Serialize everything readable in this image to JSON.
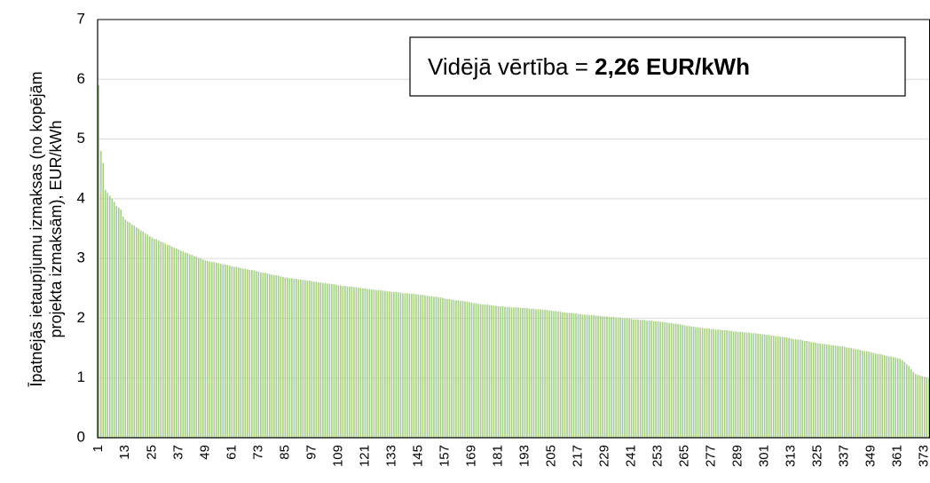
{
  "chart_data": {
    "type": "bar",
    "y_label": [
      "Īpatnējās ietaupījumu izmaksas (no kopējām",
      "projekta izmaksām), EUR/kWh"
    ],
    "annotation": {
      "text": "Vidējā vērtība =",
      "value_text": "2,26 EUR/kWh"
    },
    "color": "#a6cf86",
    "grid": true,
    "ylim": [
      0,
      7
    ],
    "yticks": [
      0,
      1,
      2,
      3,
      4,
      5,
      6,
      7
    ],
    "categories": [
      1,
      null,
      null,
      null,
      null,
      null,
      null,
      null,
      null,
      null,
      null,
      null,
      13,
      null,
      null,
      null,
      null,
      null,
      null,
      null,
      null,
      null,
      null,
      null,
      25,
      null,
      null,
      null,
      null,
      null,
      null,
      null,
      null,
      null,
      null,
      null,
      37,
      null,
      null,
      null,
      null,
      null,
      null,
      null,
      null,
      null,
      null,
      null,
      49,
      null,
      null,
      null,
      null,
      null,
      null,
      null,
      null,
      null,
      null,
      null,
      61,
      null,
      null,
      null,
      null,
      null,
      null,
      null,
      null,
      null,
      null,
      null,
      73,
      null,
      null,
      null,
      null,
      null,
      null,
      null,
      null,
      null,
      null,
      null,
      85,
      null,
      null,
      null,
      null,
      null,
      null,
      null,
      null,
      null,
      null,
      null,
      97,
      null,
      null,
      null,
      null,
      null,
      null,
      null,
      null,
      null,
      null,
      null,
      109,
      null,
      null,
      null,
      null,
      null,
      null,
      null,
      null,
      null,
      null,
      null,
      121,
      null,
      null,
      null,
      null,
      null,
      null,
      null,
      null,
      null,
      null,
      null,
      133,
      null,
      null,
      null,
      null,
      null,
      null,
      null,
      null,
      null,
      null,
      null,
      145,
      null,
      null,
      null,
      null,
      null,
      null,
      null,
      null,
      null,
      null,
      null,
      157,
      null,
      null,
      null,
      null,
      null,
      null,
      null,
      null,
      null,
      null,
      null,
      169,
      null,
      null,
      null,
      null,
      null,
      null,
      null,
      null,
      null,
      null,
      null,
      181,
      null,
      null,
      null,
      null,
      null,
      null,
      null,
      null,
      null,
      null,
      null,
      193,
      null,
      null,
      null,
      null,
      null,
      null,
      null,
      null,
      null,
      null,
      null,
      205,
      null,
      null,
      null,
      null,
      null,
      null,
      null,
      null,
      null,
      null,
      null,
      217,
      null,
      null,
      null,
      null,
      null,
      null,
      null,
      null,
      null,
      null,
      null,
      229,
      null,
      null,
      null,
      null,
      null,
      null,
      null,
      null,
      null,
      null,
      null,
      241,
      null,
      null,
      null,
      null,
      null,
      null,
      null,
      null,
      null,
      null,
      null,
      253,
      null,
      null,
      null,
      null,
      null,
      null,
      null,
      null,
      null,
      null,
      null,
      265,
      null,
      null,
      null,
      null,
      null,
      null,
      null,
      null,
      null,
      null,
      null,
      277,
      null,
      null,
      null,
      null,
      null,
      null,
      null,
      null,
      null,
      null,
      null,
      289,
      null,
      null,
      null,
      null,
      null,
      null,
      null,
      null,
      null,
      null,
      null,
      301,
      null,
      null,
      null,
      null,
      null,
      null,
      null,
      null,
      null,
      null,
      null,
      313,
      null,
      null,
      null,
      null,
      null,
      null,
      null,
      null,
      null,
      null,
      null,
      325,
      null,
      null,
      null,
      null,
      null,
      null,
      null,
      null,
      null,
      null,
      null,
      337,
      null,
      null,
      null,
      null,
      null,
      null,
      null,
      null,
      null,
      null,
      null,
      349,
      null,
      null,
      null,
      null,
      null,
      null,
      null,
      null,
      null,
      null,
      null,
      361,
      null,
      null,
      null,
      null,
      null,
      null,
      null,
      null,
      null,
      null,
      null,
      373,
      null,
      null
    ],
    "values": [
      5.9,
      4.8,
      4.6,
      4.15,
      4.1,
      4.05,
      4.0,
      3.95,
      3.88,
      3.85,
      3.82,
      3.7,
      3.65,
      3.62,
      3.6,
      3.57,
      3.55,
      3.52,
      3.5,
      3.47,
      3.45,
      3.42,
      3.4,
      3.37,
      3.35,
      3.33,
      3.32,
      3.3,
      3.28,
      3.27,
      3.25,
      3.23,
      3.22,
      3.2,
      3.18,
      3.17,
      3.15,
      3.13,
      3.12,
      3.1,
      3.09,
      3.07,
      3.06,
      3.04,
      3.03,
      3.01,
      3.0,
      2.98,
      2.97,
      2.96,
      2.95,
      2.94,
      2.94,
      2.93,
      2.92,
      2.91,
      2.9,
      2.9,
      2.89,
      2.88,
      2.87,
      2.86,
      2.86,
      2.85,
      2.84,
      2.83,
      2.83,
      2.82,
      2.81,
      2.81,
      2.8,
      2.79,
      2.78,
      2.77,
      2.76,
      2.76,
      2.75,
      2.74,
      2.73,
      2.72,
      2.72,
      2.71,
      2.7,
      2.69,
      2.68,
      2.68,
      2.67,
      2.67,
      2.66,
      2.66,
      2.65,
      2.65,
      2.64,
      2.64,
      2.63,
      2.63,
      2.62,
      2.61,
      2.61,
      2.6,
      2.6,
      2.59,
      2.59,
      2.58,
      2.58,
      2.57,
      2.57,
      2.56,
      2.55,
      2.55,
      2.54,
      2.54,
      2.53,
      2.53,
      2.53,
      2.52,
      2.52,
      2.51,
      2.51,
      2.5,
      2.5,
      2.49,
      2.49,
      2.48,
      2.48,
      2.47,
      2.47,
      2.47,
      2.46,
      2.46,
      2.45,
      2.45,
      2.44,
      2.44,
      2.44,
      2.43,
      2.43,
      2.42,
      2.42,
      2.42,
      2.41,
      2.41,
      2.41,
      2.4,
      2.4,
      2.39,
      2.39,
      2.38,
      2.38,
      2.37,
      2.37,
      2.36,
      2.36,
      2.35,
      2.35,
      2.34,
      2.33,
      2.32,
      2.32,
      2.31,
      2.31,
      2.3,
      2.3,
      2.29,
      2.29,
      2.28,
      2.28,
      2.27,
      2.26,
      2.25,
      2.25,
      2.24,
      2.24,
      2.23,
      2.23,
      2.23,
      2.22,
      2.22,
      2.21,
      2.21,
      2.2,
      2.2,
      2.2,
      2.19,
      2.19,
      2.19,
      2.18,
      2.18,
      2.18,
      2.18,
      2.17,
      2.17,
      2.17,
      2.17,
      2.16,
      2.16,
      2.16,
      2.15,
      2.15,
      2.15,
      2.14,
      2.14,
      2.14,
      2.13,
      2.13,
      2.12,
      2.12,
      2.11,
      2.11,
      2.1,
      2.1,
      2.09,
      2.09,
      2.09,
      2.08,
      2.08,
      2.07,
      2.07,
      2.06,
      2.06,
      2.06,
      2.05,
      2.05,
      2.05,
      2.04,
      2.04,
      2.04,
      2.03,
      2.03,
      2.03,
      2.02,
      2.02,
      2.02,
      2.01,
      2.01,
      2.01,
      2.0,
      2.0,
      2.0,
      1.99,
      1.99,
      1.98,
      1.98,
      1.98,
      1.97,
      1.97,
      1.97,
      1.96,
      1.96,
      1.96,
      1.95,
      1.95,
      1.95,
      1.94,
      1.94,
      1.93,
      1.93,
      1.92,
      1.92,
      1.91,
      1.91,
      1.9,
      1.9,
      1.89,
      1.88,
      1.87,
      1.87,
      1.86,
      1.86,
      1.85,
      1.85,
      1.84,
      1.84,
      1.83,
      1.83,
      1.83,
      1.82,
      1.82,
      1.81,
      1.81,
      1.81,
      1.8,
      1.8,
      1.8,
      1.79,
      1.79,
      1.78,
      1.78,
      1.77,
      1.77,
      1.77,
      1.76,
      1.76,
      1.76,
      1.75,
      1.75,
      1.75,
      1.74,
      1.74,
      1.73,
      1.73,
      1.72,
      1.72,
      1.71,
      1.71,
      1.7,
      1.7,
      1.69,
      1.69,
      1.68,
      1.68,
      1.67,
      1.66,
      1.65,
      1.65,
      1.64,
      1.64,
      1.63,
      1.62,
      1.62,
      1.61,
      1.6,
      1.6,
      1.59,
      1.58,
      1.58,
      1.57,
      1.57,
      1.56,
      1.56,
      1.55,
      1.55,
      1.54,
      1.54,
      1.53,
      1.53,
      1.52,
      1.51,
      1.51,
      1.5,
      1.49,
      1.48,
      1.48,
      1.47,
      1.46,
      1.45,
      1.45,
      1.44,
      1.43,
      1.42,
      1.41,
      1.4,
      1.4,
      1.39,
      1.38,
      1.37,
      1.36,
      1.36,
      1.35,
      1.34,
      1.33,
      1.32,
      1.3,
      1.27,
      1.23,
      1.2,
      1.15,
      1.1,
      1.07,
      1.05,
      1.04,
      1.03,
      1.02,
      1.01,
      1.0
    ]
  }
}
